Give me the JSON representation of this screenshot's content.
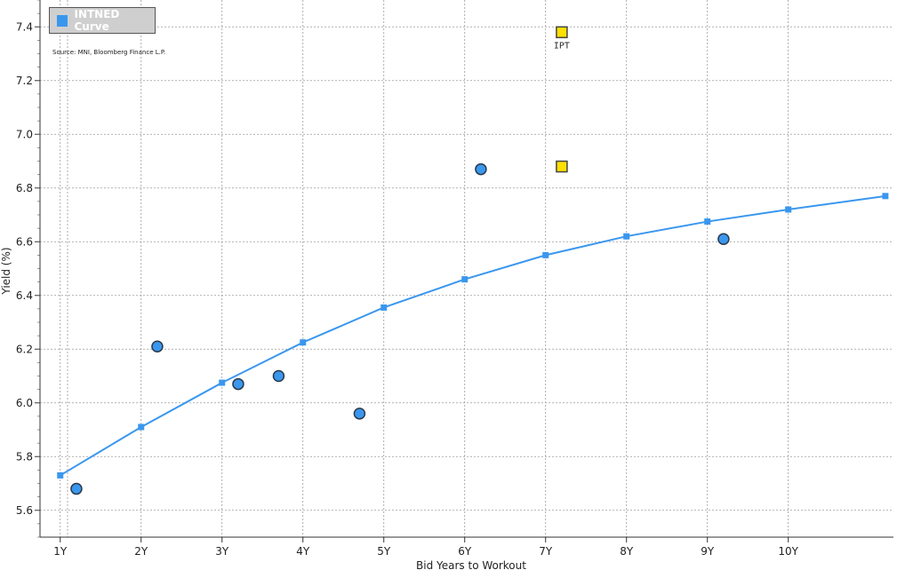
{
  "chart_data": {
    "type": "scatter",
    "xlabel": "Bid Years to Workout",
    "ylabel": "Yield (%)",
    "source": "Source: MNI, Bloomberg Finance L.P.",
    "legend_position": "top-left",
    "grid": true,
    "xlim": [
      0.75,
      11.3
    ],
    "ylim": [
      5.5,
      7.5
    ],
    "x_ticks": [
      {
        "value": 1,
        "label": "1Y"
      },
      {
        "value": 2,
        "label": "2Y"
      },
      {
        "value": 3,
        "label": "3Y"
      },
      {
        "value": 4,
        "label": "4Y"
      },
      {
        "value": 5,
        "label": "5Y"
      },
      {
        "value": 6,
        "label": "6Y"
      },
      {
        "value": 7,
        "label": "7Y"
      },
      {
        "value": 8,
        "label": "8Y"
      },
      {
        "value": 9,
        "label": "9Y"
      },
      {
        "value": 10,
        "label": "10Y"
      }
    ],
    "y_ticks": [
      {
        "value": 5.6,
        "label": "5.6"
      },
      {
        "value": 5.8,
        "label": "5.8"
      },
      {
        "value": 6.0,
        "label": "6.0"
      },
      {
        "value": 6.2,
        "label": "6.2"
      },
      {
        "value": 6.4,
        "label": "6.4"
      },
      {
        "value": 6.6,
        "label": "6.6"
      },
      {
        "value": 6.8,
        "label": "6.8"
      },
      {
        "value": 7.0,
        "label": "7.0"
      },
      {
        "value": 7.2,
        "label": "7.2"
      },
      {
        "value": 7.4,
        "label": "7.4"
      }
    ],
    "series": [
      {
        "name": "INTNED Curve",
        "kind": "line",
        "color": "#3a97ee",
        "x": [
          1,
          2,
          3,
          4,
          5,
          6,
          7,
          8,
          9,
          10,
          11.2
        ],
        "y": [
          5.73,
          5.91,
          6.075,
          6.225,
          6.355,
          6.46,
          6.55,
          6.62,
          6.675,
          6.72,
          6.77
        ]
      },
      {
        "kind": "bonds",
        "color": "#3a97ee",
        "x": [
          1.2,
          2.2,
          3.2,
          3.7,
          4.7,
          6.2,
          9.2
        ],
        "y": [
          5.68,
          6.21,
          6.07,
          6.1,
          5.96,
          6.87,
          6.61
        ]
      },
      {
        "kind": "new_issue",
        "color": "#ffe000",
        "x": [
          7.2,
          7.2
        ],
        "y": [
          7.38,
          6.88
        ]
      }
    ],
    "annotations": [
      {
        "text": "IPT",
        "x": 7.2,
        "y": 7.38
      }
    ]
  }
}
